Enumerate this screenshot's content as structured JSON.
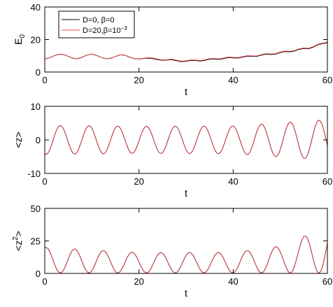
{
  "colors": {
    "series_a": "#000000",
    "series_b": "#e8434a"
  },
  "chart_data": [
    {
      "type": "line",
      "xlabel": "t",
      "ylabel": "E",
      "ylabel_sub": "0",
      "xlim": [
        0,
        60
      ],
      "ylim": [
        0,
        40
      ],
      "xticks": [
        0,
        20,
        40,
        60
      ],
      "yticks": [
        0,
        20,
        40
      ],
      "legend": {
        "placement": "top-left",
        "entries": [
          {
            "text": "D=0, β=0",
            "color_key": "series_a"
          },
          {
            "text": "D=20,β=10",
            "sup": "−3",
            "color_key": "series_b"
          }
        ]
      },
      "series": [
        {
          "x": [
            0,
            1,
            2,
            3,
            4,
            5,
            6,
            7,
            8,
            9,
            10,
            11,
            12,
            13,
            14,
            15,
            16,
            17,
            18,
            19,
            20,
            21,
            22,
            23,
            24,
            25,
            26,
            27,
            28,
            29,
            30,
            31,
            32,
            33,
            34,
            35,
            36,
            37,
            38,
            39,
            40,
            41,
            42,
            43,
            44,
            45,
            46,
            47,
            48,
            49,
            50,
            51,
            52,
            53,
            54,
            55,
            56,
            57,
            58,
            59,
            60
          ],
          "y": [
            8.0,
            8.8,
            10.0,
            10.9,
            10.8,
            9.6,
            8.5,
            8.2,
            9.2,
            10.5,
            11.0,
            10.2,
            9.0,
            8.2,
            8.5,
            9.6,
            10.6,
            10.3,
            9.2,
            8.3,
            8.0,
            8.4,
            8.5,
            8.2,
            7.6,
            7.2,
            7.4,
            7.6,
            7.0,
            6.4,
            6.6,
            7.2,
            7.1,
            6.8,
            7.2,
            7.9,
            8.0,
            7.8,
            8.3,
            8.9,
            8.7,
            8.6,
            9.2,
            9.8,
            9.6,
            9.6,
            10.4,
            11.0,
            10.8,
            11.0,
            12.0,
            12.6,
            12.4,
            12.9,
            14.0,
            14.5,
            14.3,
            15.3,
            16.8,
            17.5,
            18.0
          ]
        },
        {
          "x": [
            0,
            1,
            2,
            3,
            4,
            5,
            6,
            7,
            8,
            9,
            10,
            11,
            12,
            13,
            14,
            15,
            16,
            17,
            18,
            19,
            20,
            21,
            22,
            23,
            24,
            25,
            26,
            27,
            28,
            29,
            30,
            31,
            32,
            33,
            34,
            35,
            36,
            37,
            38,
            39,
            40,
            41,
            42,
            43,
            44,
            45,
            46,
            47,
            48,
            49,
            50,
            51,
            52,
            53,
            54,
            55,
            56,
            57,
            58,
            59,
            60
          ],
          "y": [
            8.0,
            8.8,
            10.0,
            10.9,
            10.8,
            9.6,
            8.5,
            8.2,
            9.2,
            10.5,
            11.0,
            10.2,
            9.0,
            8.2,
            8.5,
            9.6,
            10.6,
            10.3,
            9.2,
            8.3,
            8.1,
            8.5,
            8.8,
            8.6,
            7.9,
            7.4,
            7.6,
            7.9,
            7.3,
            6.7,
            6.9,
            7.5,
            7.4,
            7.1,
            7.5,
            8.2,
            8.3,
            8.1,
            8.6,
            9.2,
            9.0,
            8.9,
            9.5,
            10.1,
            9.9,
            9.9,
            10.7,
            11.3,
            11.1,
            11.3,
            12.3,
            12.9,
            12.7,
            13.2,
            14.3,
            14.8,
            14.6,
            15.6,
            17.1,
            17.8,
            18.3
          ]
        }
      ]
    },
    {
      "type": "line",
      "xlabel": "t",
      "ylabel": "<z>",
      "xlim": [
        0,
        60
      ],
      "ylim": [
        -10,
        10
      ],
      "xticks": [
        0,
        20,
        40,
        60
      ],
      "yticks": [
        -10,
        0,
        10
      ],
      "series": [
        {
          "model": "damped-cosine",
          "x_start": 0,
          "x_end": 60,
          "period": 6.1,
          "phase": 3.3,
          "offset": 0.0,
          "amp_t": [
            0,
            20,
            40,
            60
          ],
          "amp_v": [
            4.3,
            4.0,
            4.1,
            6.0
          ]
        },
        {
          "model": "damped-cosine",
          "x_start": 0,
          "x_end": 60,
          "period": 6.1,
          "phase": 3.3,
          "offset": 0.0,
          "amp_t": [
            0,
            20,
            40,
            60
          ],
          "amp_v": [
            4.3,
            4.0,
            4.1,
            6.0
          ]
        }
      ]
    },
    {
      "type": "line",
      "xlabel": "t",
      "ylabel": "<z",
      "ylabel_sup": "2",
      "ylabel_end": ">",
      "xlim": [
        0,
        60
      ],
      "ylim": [
        0,
        50
      ],
      "xticks": [
        0,
        20,
        40,
        60
      ],
      "yticks": [
        0,
        25,
        50
      ],
      "series": [
        {
          "model": "squared-cosine",
          "x_start": 0,
          "x_end": 60,
          "period": 6.1,
          "phase": 3.3,
          "floor": 0.5,
          "amp_t": [
            0,
            20,
            40,
            50,
            60
          ],
          "amp_v": [
            20.0,
            16.0,
            16.0,
            21.0,
            36.0
          ]
        },
        {
          "model": "squared-cosine",
          "x_start": 0,
          "x_end": 60,
          "period": 6.1,
          "phase": 3.3,
          "floor": 0.5,
          "amp_t": [
            0,
            20,
            40,
            50,
            60
          ],
          "amp_v": [
            20.0,
            16.0,
            16.0,
            21.0,
            36.0
          ]
        }
      ]
    }
  ]
}
